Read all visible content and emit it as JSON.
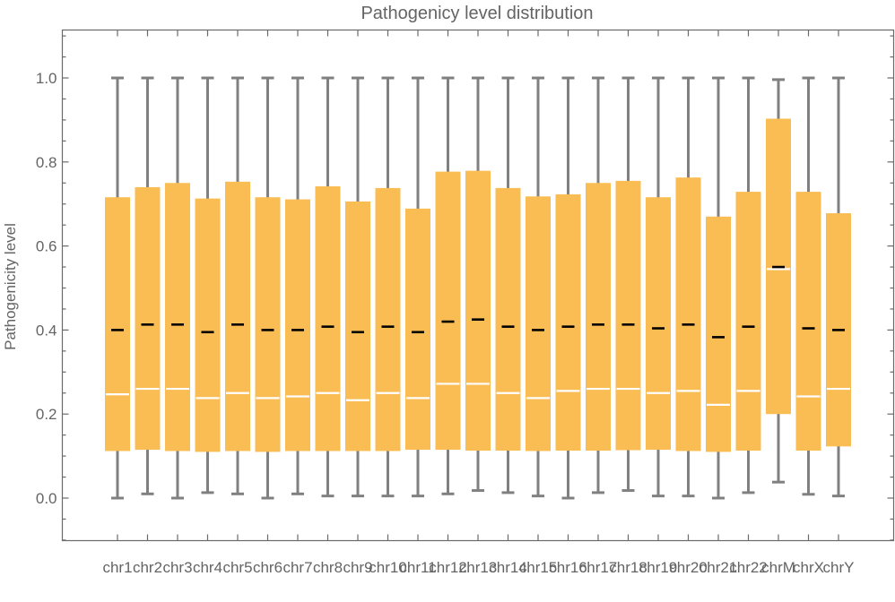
{
  "chart_data": {
    "type": "box",
    "title": "Pathogenicity level distribution",
    "title_display": "Pathogenicy level distribution",
    "xlabel": "",
    "ylabel": "Pathogenicity level",
    "ylim": [
      -0.1,
      1.1
    ],
    "yticks": [
      "0.0",
      "0.2",
      "0.4",
      "0.6",
      "0.8",
      "1.0"
    ],
    "ytick_values": [
      0.0,
      0.2,
      0.4,
      0.6,
      0.8,
      1.0
    ],
    "grid": false,
    "legend": "none",
    "colors": {
      "box": "#fabd54",
      "whisker": "#808080",
      "median": "#ffffff",
      "mean": "#000000",
      "frame": "#6a6a6a",
      "text": "#646464"
    },
    "categories": [
      "chr1",
      "chr2",
      "chr3",
      "chr4",
      "chr5",
      "chr6",
      "chr7",
      "chr8",
      "chr9",
      "chr10",
      "chr11",
      "chr12",
      "chr13",
      "chr14",
      "chr15",
      "chr16",
      "chr17",
      "chr18",
      "chr19",
      "chr20",
      "chr21",
      "chr22",
      "chrM",
      "chrX",
      "chrY"
    ],
    "series": [
      {
        "name": "whisker_low",
        "values": [
          0.0,
          0.01,
          0.0,
          0.013,
          0.01,
          0.0,
          0.01,
          0.005,
          0.005,
          0.005,
          0.005,
          0.01,
          0.018,
          0.013,
          0.005,
          0.0,
          0.013,
          0.018,
          0.005,
          0.005,
          0.0,
          0.013,
          0.038,
          0.009,
          0.005
        ]
      },
      {
        "name": "q1",
        "values": [
          0.112,
          0.115,
          0.112,
          0.11,
          0.112,
          0.11,
          0.112,
          0.112,
          0.112,
          0.112,
          0.115,
          0.115,
          0.113,
          0.113,
          0.112,
          0.113,
          0.113,
          0.114,
          0.115,
          0.112,
          0.11,
          0.113,
          0.2,
          0.113,
          0.123
        ]
      },
      {
        "name": "median",
        "values": [
          0.247,
          0.26,
          0.26,
          0.238,
          0.25,
          0.238,
          0.242,
          0.25,
          0.233,
          0.25,
          0.238,
          0.272,
          0.272,
          0.25,
          0.238,
          0.255,
          0.26,
          0.26,
          0.25,
          0.255,
          0.222,
          0.255,
          0.545,
          0.242,
          0.26
        ]
      },
      {
        "name": "mean",
        "values": [
          0.4,
          0.413,
          0.413,
          0.395,
          0.413,
          0.4,
          0.4,
          0.408,
          0.395,
          0.408,
          0.395,
          0.42,
          0.425,
          0.408,
          0.4,
          0.408,
          0.413,
          0.413,
          0.404,
          0.413,
          0.383,
          0.408,
          0.55,
          0.404,
          0.4
        ]
      },
      {
        "name": "q3",
        "values": [
          0.716,
          0.74,
          0.75,
          0.713,
          0.753,
          0.716,
          0.711,
          0.742,
          0.706,
          0.738,
          0.689,
          0.777,
          0.779,
          0.738,
          0.718,
          0.723,
          0.75,
          0.755,
          0.716,
          0.763,
          0.67,
          0.729,
          0.903,
          0.729,
          0.678
        ]
      },
      {
        "name": "whisker_high",
        "values": [
          1.0,
          1.0,
          1.0,
          1.0,
          1.0,
          1.0,
          1.0,
          1.0,
          1.0,
          1.0,
          1.0,
          1.0,
          1.0,
          1.0,
          1.0,
          1.0,
          1.0,
          1.0,
          1.0,
          1.0,
          1.0,
          1.0,
          0.996,
          1.0,
          1.0
        ]
      }
    ]
  }
}
